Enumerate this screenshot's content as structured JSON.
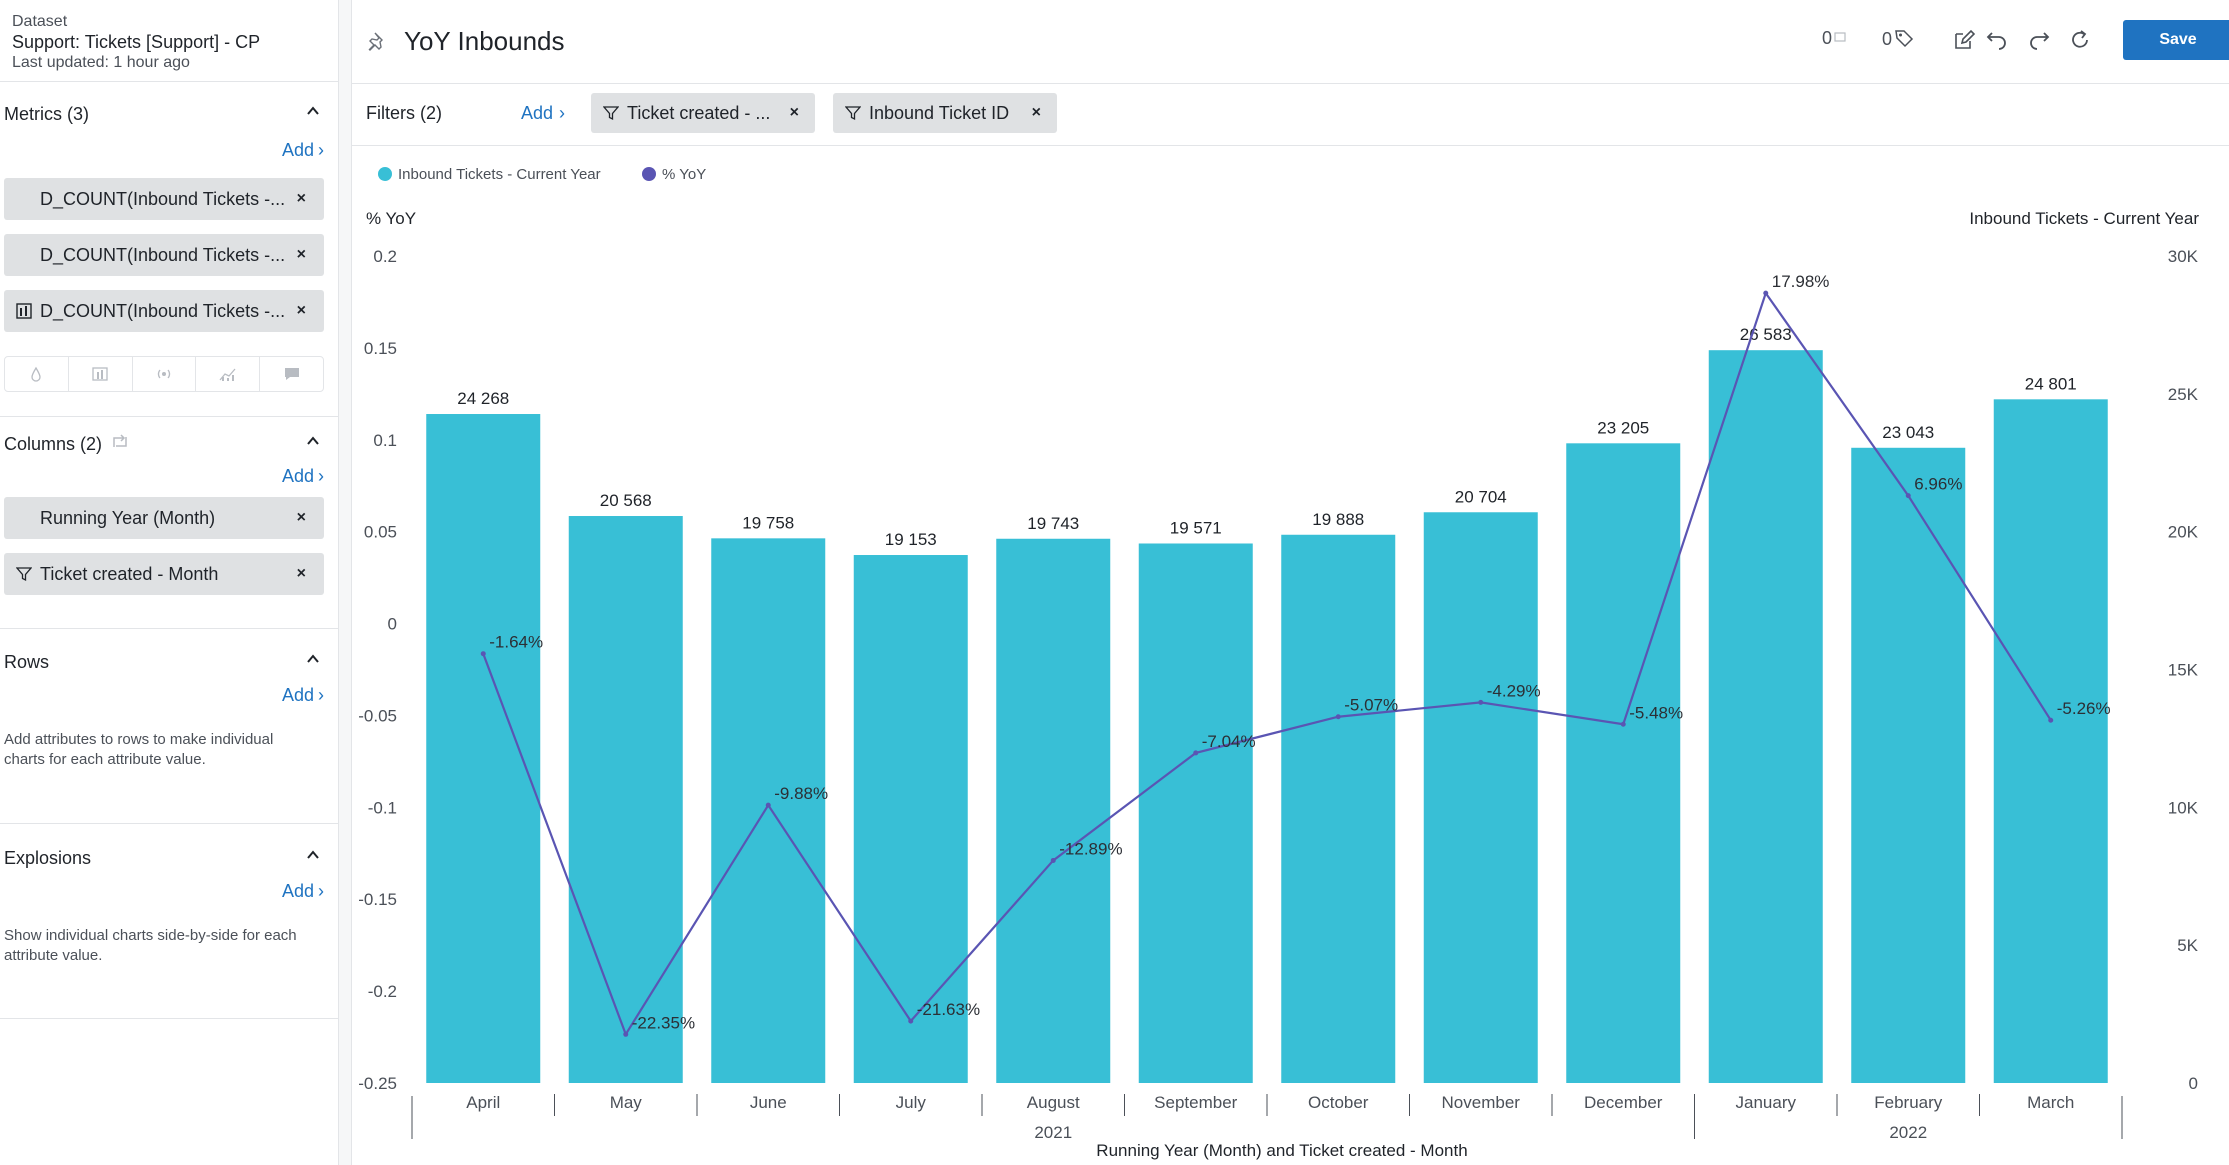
{
  "dataset": {
    "kicker": "Dataset",
    "name": "Support: Tickets [Support] - CP",
    "updated": "Last updated: 1 hour ago"
  },
  "sidebar": {
    "metrics": {
      "title": "Metrics (3)",
      "add": "Add",
      "items": [
        {
          "label": "D_COUNT(Inbound Tickets -..."
        },
        {
          "label": "D_COUNT(Inbound Tickets -..."
        },
        {
          "label": "D_COUNT(Inbound Tickets -..."
        }
      ]
    },
    "columns": {
      "title": "Columns (2)",
      "add": "Add",
      "items": [
        {
          "label": "Running Year (Month)"
        },
        {
          "label": "Ticket created - Month"
        }
      ]
    },
    "rows": {
      "title": "Rows",
      "add": "Add",
      "hint": "Add attributes to rows to make individual charts for each attribute value."
    },
    "explosions": {
      "title": "Explosions",
      "add": "Add",
      "hint": "Show individual charts side-by-side for each attribute value."
    }
  },
  "header": {
    "title": "YoY Inbounds",
    "comment_count": "0",
    "tag_count": "0",
    "save": "Save"
  },
  "filters": {
    "label": "Filters (2)",
    "add": "Add",
    "chips": [
      {
        "label": "Ticket created - ..."
      },
      {
        "label": "Inbound Ticket ID"
      }
    ]
  },
  "colors": {
    "bar": "#38bfd6",
    "line": "#5a55b3",
    "accent": "#1f73c1"
  },
  "chart_data": {
    "type": "bar",
    "categories": [
      "April",
      "May",
      "June",
      "July",
      "August",
      "September",
      "October",
      "November",
      "December",
      "January",
      "February",
      "March"
    ],
    "series": [
      {
        "name": "Inbound Tickets - Current Year",
        "type": "bar",
        "axis": "right",
        "values": [
          24268,
          20568,
          19758,
          19153,
          19743,
          19571,
          19888,
          20704,
          23205,
          26583,
          23043,
          24801
        ],
        "labels": [
          "24 268",
          "20 568",
          "19 758",
          "19 153",
          "19 743",
          "19 571",
          "19 888",
          "20 704",
          "23 205",
          "26 583",
          "23 043",
          "24 801"
        ]
      },
      {
        "name": "% YoY",
        "type": "line",
        "axis": "left",
        "values": [
          -0.0164,
          -0.2235,
          -0.0988,
          -0.2163,
          -0.1289,
          -0.0704,
          -0.0507,
          -0.0429,
          -0.0548,
          0.1798,
          0.0696,
          -0.0526
        ],
        "labels": [
          "-1.64%",
          "-22.35%",
          "-9.88%",
          "-21.63%",
          "-12.89%",
          "-7.04%",
          "-5.07%",
          "-4.29%",
          "-5.48%",
          "17.98%",
          "6.96%",
          "-5.26%"
        ]
      }
    ],
    "left_axis": {
      "title": "% YoY",
      "ylim": [
        -0.25,
        0.2
      ],
      "ticks": [
        0.2,
        0.15,
        0.1,
        0.05,
        0,
        -0.05,
        -0.1,
        -0.15,
        -0.2,
        -0.25
      ],
      "tick_labels": [
        "0.2",
        "0.15",
        "0.1",
        "0.05",
        "0",
        "-0.05",
        "-0.1",
        "-0.15",
        "-0.2",
        "-0.25"
      ]
    },
    "right_axis": {
      "title": "Inbound Tickets - Current Year",
      "ylim": [
        0,
        30000
      ],
      "ticks": [
        30000,
        25000,
        20000,
        15000,
        10000,
        5000,
        0
      ],
      "tick_labels": [
        "30K",
        "25K",
        "20K",
        "15K",
        "10K",
        "5K",
        "0"
      ]
    },
    "year_groups": [
      {
        "label": "2021",
        "from": 0,
        "to": 8
      },
      {
        "label": "2022",
        "from": 9,
        "to": 11
      }
    ],
    "xlabel": "Running Year (Month) and Ticket created - Month",
    "legend_position": "top-left",
    "grid": false
  }
}
